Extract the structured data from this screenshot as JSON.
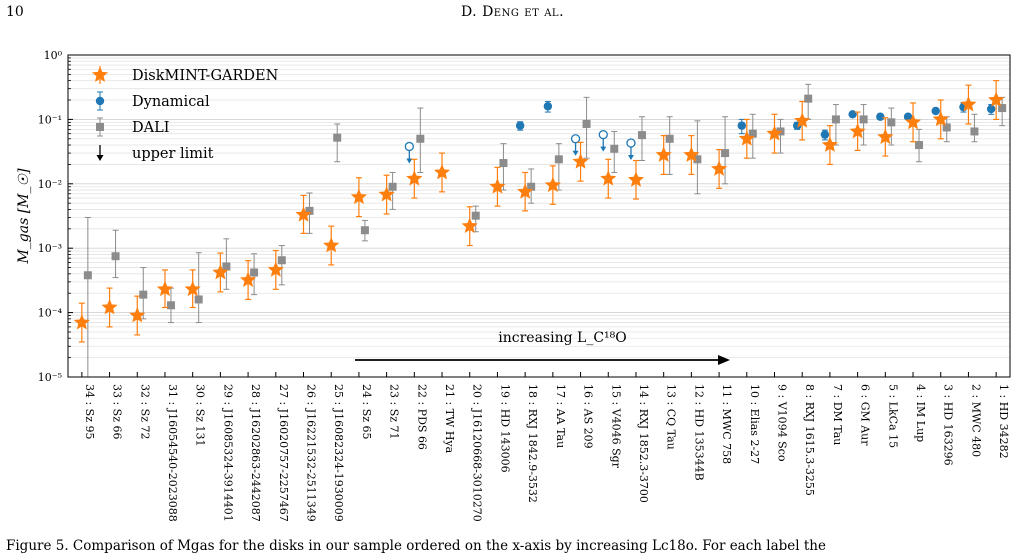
{
  "page": {
    "number": "10",
    "running_head": "D. Deng et al.",
    "caption": "Figure 5. Comparison of Mgas for the disks in our sample ordered on the x-axis by increasing Lc18o. For each label the"
  },
  "chart_data": {
    "type": "scatter",
    "ylabel": "M_gas [M_☉]",
    "yscale": "log",
    "ylim": [
      1e-05,
      1
    ],
    "ytick_labels": [
      "10⁻⁵",
      "10⁻⁴",
      "10⁻³",
      "10⁻²",
      "10⁻¹",
      "10⁰"
    ],
    "annotation": "increasing L_C¹⁸O",
    "legend": {
      "placement": "upper-left",
      "entries": [
        "DiskMINT-GARDEN",
        "Dynamical",
        "DALI",
        "upper limit"
      ]
    },
    "colors": {
      "diskmint": "#ff7f0e",
      "dynamical": "#1f77b4",
      "dali": "#8c8c8c"
    },
    "categories": [
      "34 : Sz 95",
      "33 : Sz 66",
      "32 : Sz 72",
      "31 : J16054540-2023088",
      "30 : Sz 131",
      "29 : J16085324-3914401",
      "28 : J16202863-2442087",
      "27 : J16020757-2257467",
      "26 : J16221532-2511349",
      "25 : J16082324-1930009",
      "24 : Sz 65",
      "23 : Sz 71",
      "22 : PDS 66",
      "21 : TW Hya",
      "20 : J16120668-3010270",
      "19 : HD 143006",
      "18 : RXJ 1842.9-3532",
      "17 : AA Tau",
      "16 : AS 209",
      "15 : V4046 Sgr",
      "14 : RXJ 1852.3-3700",
      "13 : CQ Tau",
      "12 : HD 135344B",
      "11 : MWC 758",
      "10 : Elias 2-27",
      "9 : V1094 Sco",
      "8 : RXJ 1615.3-3255",
      "7 : DM Tau",
      "6 : GM Aur",
      "5 : LkCa 15",
      "4 : IM Lup",
      "3 : HD 163296",
      "2 : MWC 480",
      "1 : HD 34282"
    ],
    "series": [
      {
        "name": "DiskMINT-GARDEN",
        "values": [
          7e-05,
          0.00012,
          9e-05,
          0.00023,
          0.00023,
          0.00042,
          0.00032,
          0.00046,
          0.0033,
          0.0011,
          0.0062,
          0.0068,
          0.012,
          0.015,
          0.0022,
          0.009,
          0.0075,
          0.0095,
          0.022,
          0.012,
          0.0115,
          0.028,
          0.028,
          0.017,
          0.05,
          0.06,
          0.095,
          0.04,
          0.065,
          0.053,
          0.09,
          0.1,
          0.17,
          0.2
        ],
        "err_low": [
          3.5e-05,
          6e-05,
          4.5e-05,
          0.00012,
          0.00012,
          0.00021,
          0.00016,
          0.00023,
          0.0017,
          0.00055,
          0.0031,
          0.0034,
          0.006,
          0.0075,
          0.0011,
          0.0045,
          0.0038,
          0.0048,
          0.011,
          0.006,
          0.0058,
          0.014,
          0.014,
          0.0085,
          0.025,
          0.03,
          0.048,
          0.02,
          0.033,
          0.027,
          0.045,
          0.05,
          0.085,
          0.1
        ],
        "err_high": [
          0.00014,
          0.00024,
          0.00018,
          0.00046,
          0.00046,
          0.00084,
          0.00064,
          0.00092,
          0.0066,
          0.0022,
          0.0124,
          0.0136,
          0.024,
          0.03,
          0.0044,
          0.018,
          0.015,
          0.019,
          0.044,
          0.024,
          0.023,
          0.056,
          0.056,
          0.034,
          0.1,
          0.12,
          0.19,
          0.08,
          0.13,
          0.106,
          0.18,
          0.2,
          0.34,
          0.4
        ]
      },
      {
        "name": "Dynamical",
        "values": [
          null,
          null,
          null,
          null,
          null,
          null,
          null,
          null,
          null,
          null,
          null,
          null,
          0.038,
          null,
          null,
          null,
          0.08,
          0.16,
          0.05,
          0.058,
          0.043,
          null,
          null,
          null,
          0.08,
          null,
          0.08,
          0.058,
          0.12,
          0.11,
          0.11,
          0.135,
          0.155,
          0.145
        ],
        "upper_limit": [
          false,
          false,
          false,
          false,
          false,
          false,
          false,
          false,
          false,
          false,
          false,
          false,
          true,
          false,
          false,
          false,
          false,
          false,
          true,
          true,
          true,
          false,
          false,
          false,
          false,
          false,
          false,
          false,
          false,
          false,
          false,
          false,
          false,
          false
        ],
        "err_low": [
          null,
          null,
          null,
          null,
          null,
          null,
          null,
          null,
          null,
          null,
          null,
          null,
          null,
          null,
          null,
          null,
          0.068,
          0.13,
          null,
          null,
          null,
          null,
          null,
          null,
          0.06,
          null,
          0.07,
          0.048,
          null,
          0.1,
          null,
          null,
          0.13,
          0.12
        ],
        "err_high": [
          null,
          null,
          null,
          null,
          null,
          null,
          null,
          null,
          null,
          null,
          null,
          null,
          null,
          null,
          null,
          null,
          0.092,
          0.19,
          null,
          null,
          null,
          null,
          null,
          null,
          0.1,
          null,
          0.09,
          0.068,
          null,
          0.12,
          null,
          null,
          0.18,
          0.17
        ]
      },
      {
        "name": "DALI",
        "values": [
          0.00038,
          0.00075,
          0.00019,
          0.00013,
          0.00016,
          0.00052,
          0.00042,
          0.00065,
          0.0038,
          0.052,
          0.0019,
          0.009,
          0.05,
          null,
          0.0032,
          0.021,
          0.009,
          0.024,
          0.085,
          0.035,
          0.057,
          0.05,
          0.024,
          0.03,
          0.06,
          0.065,
          0.21,
          0.1,
          0.1,
          0.09,
          0.04,
          0.075,
          0.065,
          0.15
        ],
        "err_low": [
          1e-05,
          0.00035,
          8e-05,
          7e-05,
          7e-05,
          0.00023,
          0.00019,
          0.00027,
          0.0017,
          0.022,
          0.0013,
          0.004,
          0.015,
          null,
          0.0018,
          0.008,
          0.005,
          0.008,
          0.025,
          0.015,
          0.023,
          0.014,
          0.007,
          0.01,
          0.025,
          0.03,
          0.1,
          0.04,
          0.04,
          0.04,
          0.022,
          0.045,
          0.045,
          0.08
        ],
        "err_high": [
          0.003,
          0.0019,
          0.0005,
          0.00024,
          0.00085,
          0.0014,
          0.00082,
          0.0011,
          0.0072,
          0.085,
          0.0027,
          0.015,
          0.15,
          null,
          0.0045,
          0.042,
          0.017,
          0.042,
          0.22,
          0.065,
          0.11,
          0.11,
          0.095,
          0.11,
          0.12,
          0.1,
          0.35,
          0.17,
          0.17,
          0.15,
          0.07,
          0.11,
          0.12,
          0.22
        ]
      }
    ]
  }
}
